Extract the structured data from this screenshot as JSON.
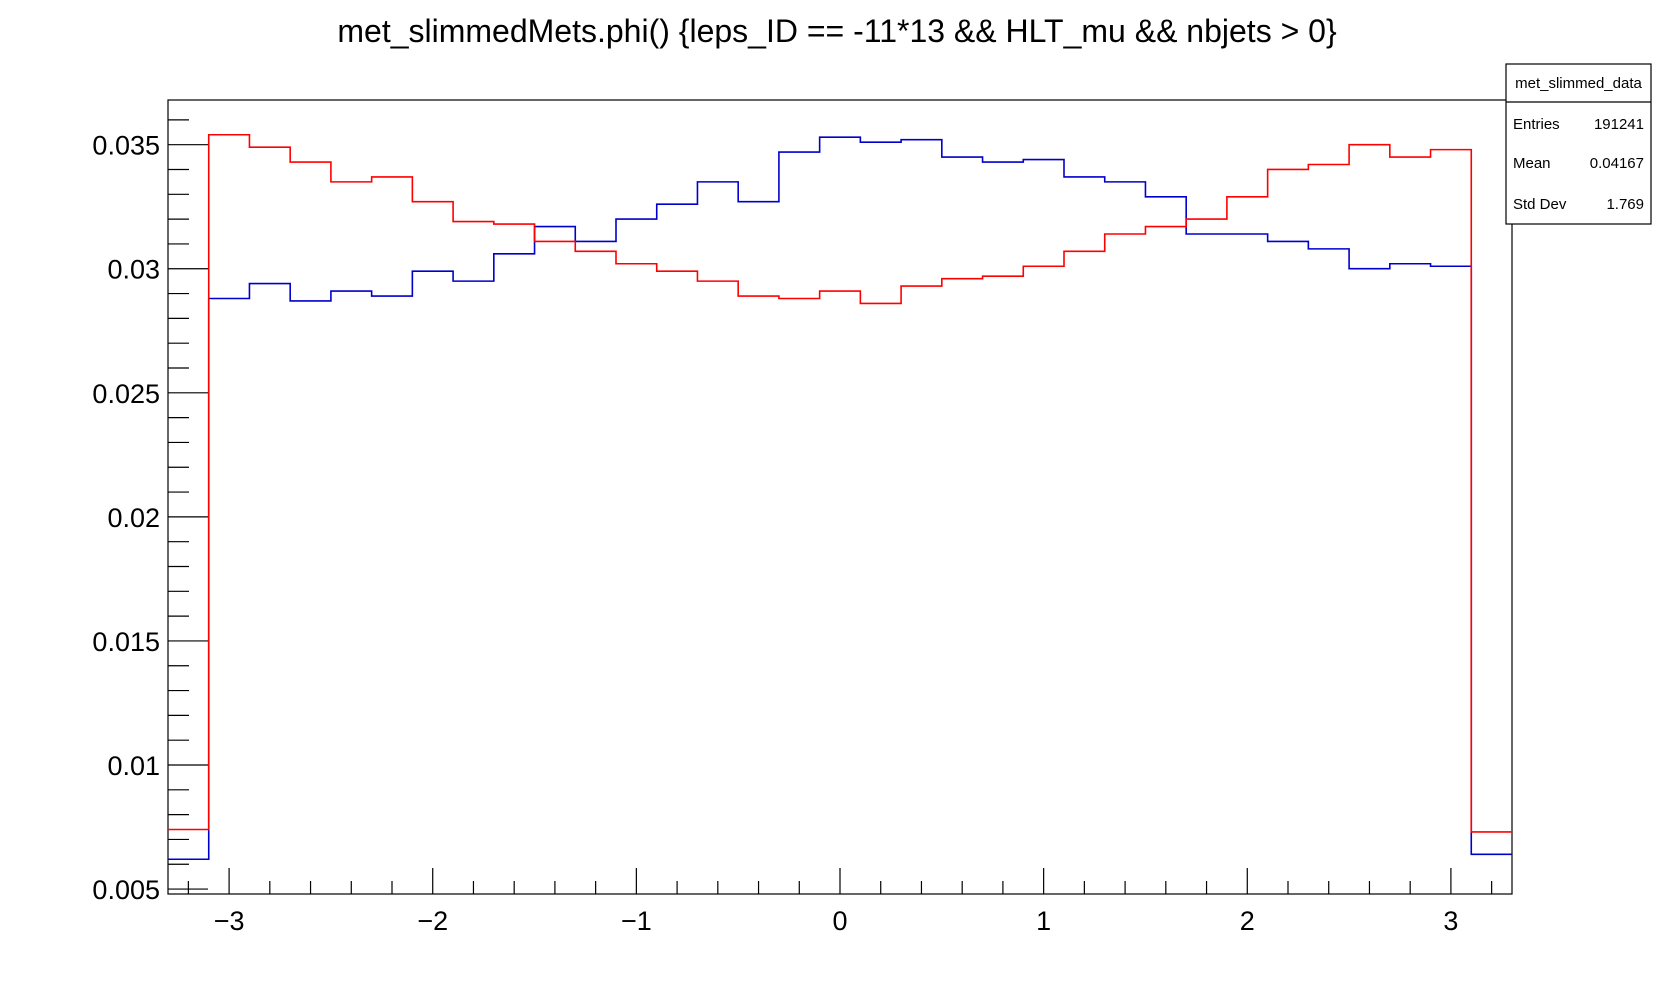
{
  "chart_data": {
    "type": "line",
    "title": "met_slimmedMets.phi() {leps_ID == -11*13 && HLT_mu && nbjets > 0}",
    "xlabel": "",
    "ylabel": "",
    "xlim": [
      -3.3,
      3.3
    ],
    "ylim": [
      0.0048,
      0.0368
    ],
    "x_ticks": [
      {
        "value": -3,
        "label": "−3"
      },
      {
        "value": -2,
        "label": "−2"
      },
      {
        "value": -1,
        "label": "−1"
      },
      {
        "value": 0,
        "label": "0"
      },
      {
        "value": 1,
        "label": "1"
      },
      {
        "value": 2,
        "label": "2"
      },
      {
        "value": 3,
        "label": "3"
      }
    ],
    "y_ticks": [
      {
        "value": 0.005,
        "label": "0.005"
      },
      {
        "value": 0.01,
        "label": "0.01"
      },
      {
        "value": 0.015,
        "label": "0.015"
      },
      {
        "value": 0.02,
        "label": "0.02"
      },
      {
        "value": 0.025,
        "label": "0.025"
      },
      {
        "value": 0.03,
        "label": "0.03"
      },
      {
        "value": 0.035,
        "label": "0.035"
      }
    ],
    "grid": false,
    "legend": "none",
    "bin_edges": [
      -3.3,
      -3.1,
      -2.9,
      -2.7,
      -2.5,
      -2.3,
      -2.1,
      -1.9,
      -1.7,
      -1.5,
      -1.3,
      -1.1,
      -0.9,
      -0.7,
      -0.5,
      -0.3,
      -0.1,
      0.1,
      0.3,
      0.5,
      0.7,
      0.9,
      1.1,
      1.3,
      1.5,
      1.7,
      1.9,
      2.1,
      2.3,
      2.5,
      2.7,
      2.9,
      3.1,
      3.3
    ],
    "series": [
      {
        "color": "#0000cc",
        "values": [
          0.0062,
          0.0288,
          0.0294,
          0.0287,
          0.0291,
          0.0289,
          0.0299,
          0.0295,
          0.0306,
          0.0317,
          0.0311,
          0.032,
          0.0326,
          0.0335,
          0.0327,
          0.0347,
          0.0353,
          0.0351,
          0.0352,
          0.0345,
          0.0343,
          0.0344,
          0.0337,
          0.0335,
          0.0329,
          0.0314,
          0.0314,
          0.0311,
          0.0308,
          0.03,
          0.0302,
          0.0301,
          0.0064
        ]
      },
      {
        "color": "#ff0000",
        "values": [
          0.0074,
          0.0354,
          0.0349,
          0.0343,
          0.0335,
          0.0337,
          0.0327,
          0.0319,
          0.0318,
          0.0311,
          0.0307,
          0.0302,
          0.0299,
          0.0295,
          0.0289,
          0.0288,
          0.0291,
          0.0286,
          0.0293,
          0.0296,
          0.0297,
          0.0301,
          0.0307,
          0.0314,
          0.0317,
          0.032,
          0.0329,
          0.034,
          0.0342,
          0.035,
          0.0345,
          0.0348,
          0.0073
        ]
      }
    ],
    "stats_box": {
      "name": "met_slimmed_data",
      "rows": [
        {
          "label": "Entries",
          "value": "191241"
        },
        {
          "label": "Mean",
          "value": "0.04167"
        },
        {
          "label": "Std Dev",
          "value": "1.769"
        }
      ]
    }
  }
}
